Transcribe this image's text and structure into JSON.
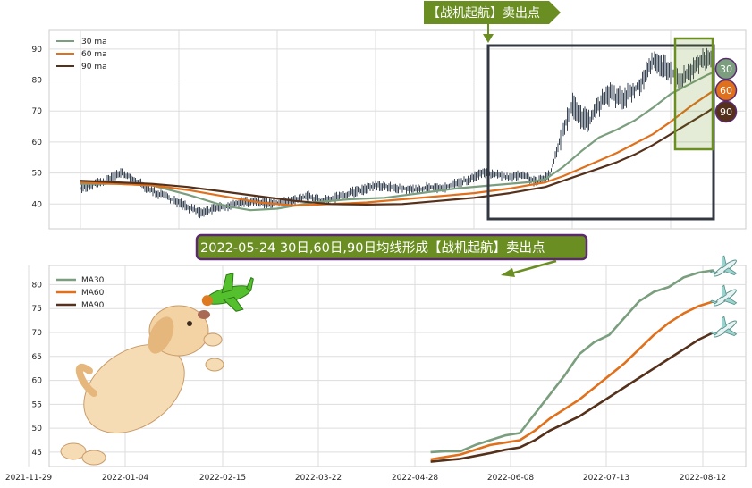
{
  "annotations": {
    "top_banner": "【战机起航】卖出点",
    "mid_banner": "2022-05-24 30日,60日,90日均线形成【战机起航】卖出点",
    "badges": [
      "30",
      "60",
      "90"
    ]
  },
  "colors": {
    "ma30": "#7a9e7e",
    "ma60": "#e0701b",
    "ma90": "#55301a",
    "candle": "#3a4556",
    "banner_green": "#6b8e23",
    "banner_purple": "#5b2a6e",
    "badge30": "#7a9e7e",
    "badge60": "#e0701b",
    "badge90": "#55301a",
    "plane": "#9bd3cf",
    "toy_plane": "#55c02e"
  },
  "icons": [
    "dog-illustration",
    "toy-plane-icon",
    "airplane-icon"
  ],
  "chart_data": [
    {
      "type": "line",
      "name": "price-with-moving-averages",
      "ylim": [
        32,
        96
      ],
      "yticks": [
        40,
        50,
        60,
        70,
        80,
        90
      ],
      "legend": {
        "placement": "top-left",
        "entries": [
          "30 ma",
          "60 ma",
          "90 ma"
        ]
      },
      "grid": true,
      "price_x": [
        0,
        15,
        30,
        45,
        60,
        75,
        90,
        105,
        120,
        135,
        150,
        165,
        180,
        195,
        210,
        225,
        240,
        255,
        270,
        285,
        300,
        315,
        330,
        345,
        360,
        375,
        390,
        405,
        420,
        435,
        450,
        465,
        480,
        495,
        510,
        525,
        540,
        550,
        560,
        570,
        580,
        590,
        600,
        610,
        620,
        630,
        640,
        650,
        660,
        670,
        680,
        690,
        700,
        708
      ],
      "price": [
        45,
        46.5,
        47.5,
        50,
        48,
        45,
        43,
        41,
        39,
        37,
        38.5,
        39.5,
        40.5,
        41,
        40,
        40.5,
        41.5,
        42.5,
        41,
        42,
        43.5,
        44.5,
        46,
        45.5,
        45,
        44.5,
        45.5,
        45,
        46.5,
        48,
        50,
        49.5,
        48.5,
        49.5,
        47,
        49.5,
        64,
        72,
        68,
        67,
        72,
        75.5,
        74,
        75,
        77,
        80,
        86,
        85,
        82.5,
        80.5,
        82,
        85.5,
        86.5,
        85
      ],
      "series": [
        {
          "name": "30 ma",
          "x": [
            0,
            40,
            80,
            120,
            160,
            190,
            220,
            260,
            300,
            340,
            380,
            420,
            460,
            500,
            520,
            540,
            560,
            580,
            600,
            620,
            640,
            660,
            680,
            700,
            708
          ],
          "values": [
            46.5,
            46.5,
            46,
            43,
            39.5,
            38,
            38.5,
            40.5,
            41.5,
            42,
            43.5,
            45,
            46,
            47,
            48,
            52,
            57,
            61.5,
            64,
            67,
            71,
            75.5,
            78.5,
            81.5,
            82.5
          ]
        },
        {
          "name": "60 ma",
          "x": [
            0,
            40,
            80,
            120,
            160,
            200,
            240,
            280,
            320,
            360,
            400,
            440,
            480,
            500,
            520,
            540,
            560,
            580,
            600,
            620,
            640,
            660,
            680,
            700,
            708
          ],
          "values": [
            47,
            46.5,
            46,
            44.5,
            42.5,
            40.5,
            39.5,
            40,
            40.5,
            41.5,
            42.5,
            43.5,
            45,
            46,
            47,
            49,
            51.5,
            54,
            56.5,
            59.5,
            62.5,
            66.5,
            71,
            75,
            76.5
          ]
        },
        {
          "name": "90 ma",
          "x": [
            0,
            40,
            80,
            120,
            160,
            200,
            240,
            280,
            320,
            360,
            400,
            440,
            480,
            500,
            520,
            540,
            560,
            580,
            600,
            620,
            640,
            660,
            680,
            700,
            708
          ],
          "values": [
            47.5,
            47,
            46.5,
            45.5,
            44,
            42.5,
            41,
            40,
            39.8,
            40,
            41,
            42,
            43.5,
            44.5,
            45.5,
            47.5,
            49.5,
            51.5,
            53.5,
            56,
            59,
            62.5,
            66,
            69.5,
            71
          ]
        }
      ]
    },
    {
      "type": "line",
      "name": "moving-averages-zoom",
      "ylim": [
        42,
        84
      ],
      "yticks": [
        45,
        50,
        55,
        60,
        65,
        70,
        75,
        80
      ],
      "xticks": [
        "2021-11-29",
        "2022-01-04",
        "2022-02-15",
        "2022-03-22",
        "2022-04-28",
        "2022-06-08",
        "2022-07-13",
        "2022-08-12"
      ],
      "legend": {
        "placement": "top-left",
        "entries": [
          "MA30",
          "MA60",
          "MA90"
        ]
      },
      "grid": true,
      "series": [
        {
          "name": "MA30",
          "x": [
            81,
            84,
            87,
            90,
            93,
            96,
            99,
            102,
            105,
            108,
            111,
            114,
            117,
            120,
            123,
            126,
            129,
            132,
            135,
            138
          ],
          "values": [
            45,
            45.2,
            45.2,
            46.5,
            47.5,
            48.5,
            49,
            53,
            57,
            61,
            65.5,
            68,
            69.5,
            73,
            76.5,
            78.5,
            79.5,
            81.5,
            82.5,
            83
          ]
        },
        {
          "name": "MA60",
          "x": [
            81,
            84,
            87,
            90,
            93,
            96,
            99,
            102,
            105,
            108,
            111,
            114,
            117,
            120,
            123,
            126,
            129,
            132,
            135,
            138
          ],
          "values": [
            43.5,
            44,
            44.5,
            45.5,
            46.5,
            47,
            47.5,
            49.5,
            52,
            54,
            56,
            58.5,
            61,
            63.5,
            66.5,
            69.5,
            72,
            74,
            75.5,
            76.5
          ]
        },
        {
          "name": "MA90",
          "x": [
            81,
            84,
            87,
            90,
            93,
            96,
            99,
            102,
            105,
            108,
            111,
            114,
            117,
            120,
            123,
            126,
            129,
            132,
            135,
            138
          ],
          "values": [
            43,
            43.3,
            43.6,
            44.2,
            44.8,
            45.5,
            46,
            47.5,
            49.5,
            51,
            52.5,
            54.5,
            56.5,
            58.5,
            60.5,
            62.5,
            64.5,
            66.5,
            68.5,
            70
          ]
        }
      ]
    }
  ]
}
